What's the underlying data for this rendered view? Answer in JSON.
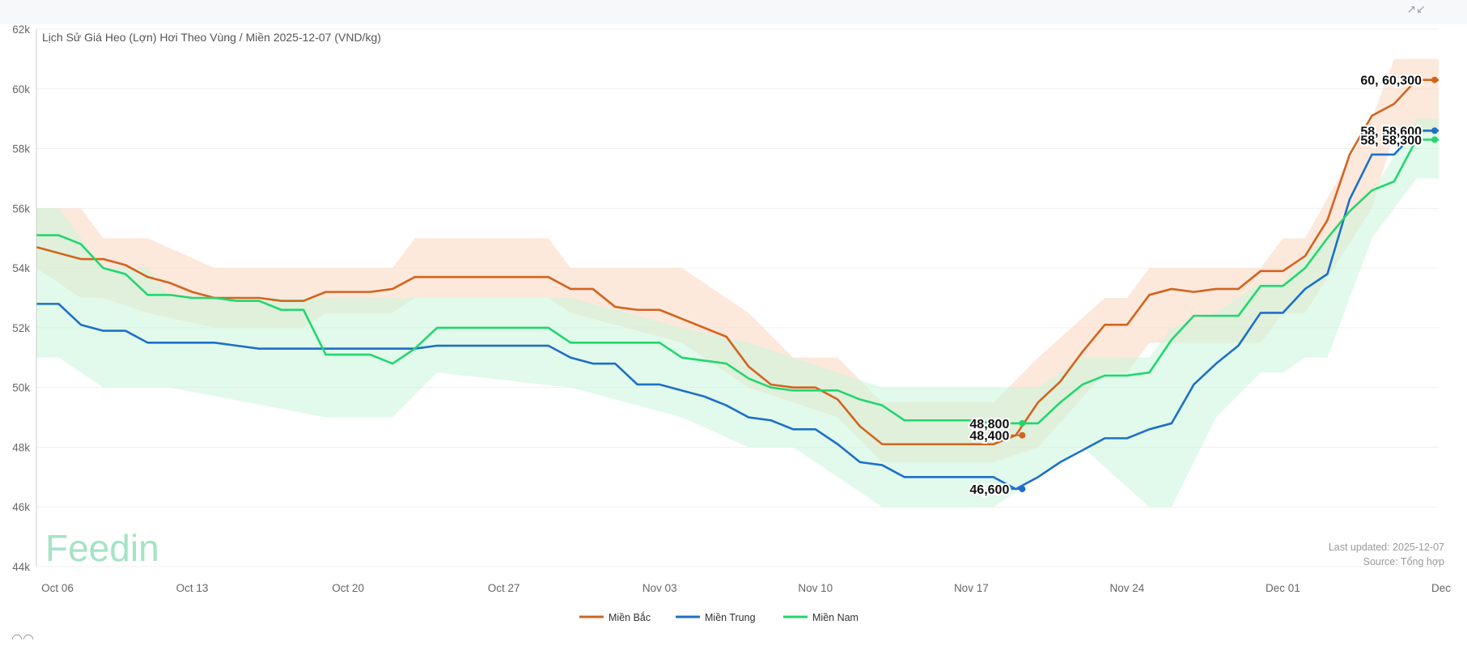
{
  "app": {
    "expand_icon": "collapse-expand-icon",
    "brand": "Feedin",
    "bottom_icon": "chat-bubble-icon"
  },
  "footer": {
    "updated": "Last updated: 2025-12-07",
    "source": "Source: Tổng hợp"
  },
  "chart_data": {
    "type": "line",
    "title": "Lịch Sử Giá Heo (Lợn) Hơi Theo Vùng / Miền 2025-12-07 (VND/kg)",
    "xlabel": "",
    "ylabel": "",
    "x_range": [
      "2025-10-06",
      "2025-12-08"
    ],
    "ylim": [
      44000,
      62000
    ],
    "y_ticks": [
      44000,
      46000,
      48000,
      50000,
      52000,
      54000,
      56000,
      58000,
      60000,
      62000
    ],
    "y_tick_labels": [
      "44k",
      "46k",
      "48k",
      "50k",
      "52k",
      "54k",
      "56k",
      "58k",
      "60k",
      "62k"
    ],
    "x_ticks": [
      0,
      7,
      14,
      21,
      28,
      35,
      42,
      49,
      56,
      63
    ],
    "x_tick_labels": [
      "Oct 06",
      "Oct 13",
      "Oct 20",
      "Oct 27",
      "Nov 03",
      "Nov 10",
      "Nov 17",
      "Nov 24",
      "Dec 01",
      "Dec"
    ],
    "grid": true,
    "legend_position": "bottom-center",
    "series": [
      {
        "name": "Miền Bắc",
        "color": "#d2641e",
        "band_color": "#fbd5bf",
        "points": [
          [
            0,
            54700
          ],
          [
            1,
            54500
          ],
          [
            1.5,
            54400
          ],
          [
            2,
            54300
          ],
          [
            3,
            54300
          ],
          [
            4,
            54100
          ],
          [
            5,
            53700
          ],
          [
            6,
            53500
          ],
          [
            7,
            53200
          ],
          [
            8,
            53000
          ],
          [
            9,
            53000
          ],
          [
            10,
            53000
          ],
          [
            11,
            52900
          ],
          [
            12,
            52900
          ],
          [
            13,
            53200
          ],
          [
            14,
            53200
          ],
          [
            15,
            53200
          ],
          [
            16,
            53300
          ],
          [
            17,
            53700
          ],
          [
            18,
            53700
          ],
          [
            19,
            53700
          ],
          [
            20,
            53700
          ],
          [
            21,
            53700
          ],
          [
            22,
            53700
          ],
          [
            23,
            53700
          ],
          [
            24,
            53300
          ],
          [
            25,
            53300
          ],
          [
            26,
            52700
          ],
          [
            27,
            52600
          ],
          [
            28,
            52600
          ],
          [
            29,
            52300
          ],
          [
            30,
            52000
          ],
          [
            31,
            51700
          ],
          [
            32,
            50700
          ],
          [
            33,
            50100
          ],
          [
            34,
            50000
          ],
          [
            35,
            50000
          ],
          [
            36,
            49600
          ],
          [
            37,
            48700
          ],
          [
            38,
            48100
          ],
          [
            39,
            48100
          ],
          [
            40,
            48100
          ],
          [
            41,
            48100
          ],
          [
            42,
            48100
          ],
          [
            43,
            48100
          ],
          [
            44,
            48400
          ],
          [
            45,
            49500
          ],
          [
            46,
            50200
          ],
          [
            47,
            51200
          ],
          [
            48,
            52100
          ],
          [
            49,
            52100
          ],
          [
            50,
            53100
          ],
          [
            51,
            53300
          ],
          [
            52,
            53200
          ],
          [
            53,
            53300
          ],
          [
            54,
            53300
          ],
          [
            55,
            53900
          ],
          [
            56,
            53900
          ],
          [
            57,
            54400
          ],
          [
            58,
            55600
          ],
          [
            59,
            57800
          ],
          [
            60,
            59100
          ],
          [
            61,
            59500
          ],
          [
            62,
            60300
          ],
          [
            63,
            60300
          ]
        ],
        "band": [
          [
            0,
            56000,
            54000
          ],
          [
            2,
            56000,
            53000
          ],
          [
            3,
            55000,
            53000
          ],
          [
            5,
            55000,
            52500
          ],
          [
            8,
            54000,
            52000
          ],
          [
            12,
            54000,
            52000
          ],
          [
            13,
            54000,
            52500
          ],
          [
            16,
            54000,
            52500
          ],
          [
            17,
            55000,
            53000
          ],
          [
            23,
            55000,
            53000
          ],
          [
            24,
            54000,
            52500
          ],
          [
            29,
            54000,
            51500
          ],
          [
            32,
            52500,
            50000
          ],
          [
            34,
            51000,
            49500
          ],
          [
            36,
            51000,
            49000
          ],
          [
            38,
            49500,
            47500
          ],
          [
            43,
            49500,
            47500
          ],
          [
            45,
            51000,
            48000
          ],
          [
            48,
            53000,
            50500
          ],
          [
            49,
            53000,
            50500
          ],
          [
            50,
            54000,
            51500
          ],
          [
            55,
            54000,
            51500
          ],
          [
            56,
            55000,
            52500
          ],
          [
            57,
            55000,
            52500
          ],
          [
            60,
            59000,
            56000
          ],
          [
            61,
            61000,
            58500
          ],
          [
            63,
            61000,
            58500
          ]
        ]
      },
      {
        "name": "Miền Trung",
        "color": "#1e6fc8",
        "band_color": "#c6dcf2",
        "points": [
          [
            0,
            52800
          ],
          [
            1,
            52800
          ],
          [
            2,
            52100
          ],
          [
            3,
            51900
          ],
          [
            4,
            51900
          ],
          [
            5,
            51500
          ],
          [
            6,
            51500
          ],
          [
            7,
            51500
          ],
          [
            8,
            51500
          ],
          [
            9,
            51400
          ],
          [
            10,
            51300
          ],
          [
            11,
            51300
          ],
          [
            12,
            51300
          ],
          [
            13,
            51300
          ],
          [
            14,
            51300
          ],
          [
            15,
            51300
          ],
          [
            16,
            51300
          ],
          [
            17,
            51300
          ],
          [
            18,
            51400
          ],
          [
            19,
            51400
          ],
          [
            20,
            51400
          ],
          [
            21,
            51400
          ],
          [
            22,
            51400
          ],
          [
            23,
            51400
          ],
          [
            24,
            51000
          ],
          [
            25,
            50800
          ],
          [
            26,
            50800
          ],
          [
            27,
            50100
          ],
          [
            28,
            50100
          ],
          [
            29,
            49900
          ],
          [
            30,
            49700
          ],
          [
            31,
            49400
          ],
          [
            32,
            49000
          ],
          [
            33,
            48900
          ],
          [
            34,
            48600
          ],
          [
            35,
            48600
          ],
          [
            36,
            48100
          ],
          [
            37,
            47500
          ],
          [
            38,
            47400
          ],
          [
            39,
            47000
          ],
          [
            40,
            47000
          ],
          [
            41,
            47000
          ],
          [
            42,
            47000
          ],
          [
            43,
            47000
          ],
          [
            44,
            46600
          ],
          [
            45,
            47000
          ],
          [
            46,
            47500
          ],
          [
            47,
            47900
          ],
          [
            48,
            48300
          ],
          [
            49,
            48300
          ],
          [
            50,
            48600
          ],
          [
            51,
            48800
          ],
          [
            52,
            50100
          ],
          [
            53,
            50800
          ],
          [
            54,
            51400
          ],
          [
            55,
            52500
          ],
          [
            56,
            52500
          ],
          [
            57,
            53300
          ],
          [
            58,
            53800
          ],
          [
            59,
            56300
          ],
          [
            60,
            57800
          ],
          [
            61,
            57800
          ],
          [
            62,
            58600
          ],
          [
            63,
            58600
          ]
        ],
        "band": []
      },
      {
        "name": "Miền Nam",
        "color": "#22d66e",
        "band_color": "#c8f5da",
        "points": [
          [
            0,
            55100
          ],
          [
            1,
            55100
          ],
          [
            2,
            54800
          ],
          [
            3,
            54000
          ],
          [
            4,
            53800
          ],
          [
            5,
            53100
          ],
          [
            6,
            53100
          ],
          [
            7,
            53000
          ],
          [
            8,
            53000
          ],
          [
            9,
            52900
          ],
          [
            10,
            52900
          ],
          [
            11,
            52600
          ],
          [
            12,
            52600
          ],
          [
            13,
            51100
          ],
          [
            14,
            51100
          ],
          [
            15,
            51100
          ],
          [
            16,
            50800
          ],
          [
            17,
            51300
          ],
          [
            18,
            52000
          ],
          [
            19,
            52000
          ],
          [
            20,
            52000
          ],
          [
            21,
            52000
          ],
          [
            22,
            52000
          ],
          [
            23,
            52000
          ],
          [
            24,
            51500
          ],
          [
            25,
            51500
          ],
          [
            26,
            51500
          ],
          [
            27,
            51500
          ],
          [
            28,
            51500
          ],
          [
            29,
            51000
          ],
          [
            30,
            50900
          ],
          [
            31,
            50800
          ],
          [
            32,
            50300
          ],
          [
            33,
            50000
          ],
          [
            34,
            49900
          ],
          [
            35,
            49900
          ],
          [
            36,
            49900
          ],
          [
            37,
            49600
          ],
          [
            38,
            49400
          ],
          [
            39,
            48900
          ],
          [
            40,
            48900
          ],
          [
            41,
            48900
          ],
          [
            42,
            48900
          ],
          [
            43,
            48800
          ],
          [
            44,
            48800
          ],
          [
            45,
            48800
          ],
          [
            46,
            49500
          ],
          [
            47,
            50100
          ],
          [
            48,
            50400
          ],
          [
            49,
            50400
          ],
          [
            50,
            50500
          ],
          [
            51,
            51600
          ],
          [
            52,
            52400
          ],
          [
            53,
            52400
          ],
          [
            54,
            52400
          ],
          [
            55,
            53400
          ],
          [
            56,
            53400
          ],
          [
            57,
            54000
          ],
          [
            58,
            55000
          ],
          [
            59,
            55900
          ],
          [
            60,
            56600
          ],
          [
            61,
            56900
          ],
          [
            62,
            58300
          ],
          [
            63,
            58300
          ]
        ],
        "band": [
          [
            0,
            56000,
            51000
          ],
          [
            1,
            56000,
            51000
          ],
          [
            3,
            54000,
            50000
          ],
          [
            5,
            54000,
            50000
          ],
          [
            6,
            53000,
            50000
          ],
          [
            13,
            53000,
            49000
          ],
          [
            16,
            53000,
            49000
          ],
          [
            18,
            53000,
            50500
          ],
          [
            24,
            53000,
            50000
          ],
          [
            29,
            52000,
            49000
          ],
          [
            32,
            51500,
            48000
          ],
          [
            34,
            51000,
            48000
          ],
          [
            36,
            50500,
            47000
          ],
          [
            38,
            50000,
            46000
          ],
          [
            43,
            50000,
            46000
          ],
          [
            45,
            50000,
            47000
          ],
          [
            47,
            51000,
            48000
          ],
          [
            50,
            51000,
            46000
          ],
          [
            51,
            52000,
            46000
          ],
          [
            53,
            52500,
            49000
          ],
          [
            55,
            53500,
            50500
          ],
          [
            56,
            53500,
            50500
          ],
          [
            57,
            54500,
            51000
          ],
          [
            58,
            55000,
            51000
          ],
          [
            60,
            56500,
            55000
          ],
          [
            62,
            59000,
            57000
          ],
          [
            63,
            59000,
            57000
          ]
        ]
      }
    ],
    "end_labels": [
      {
        "series": "Miền Bắc",
        "x": 62,
        "value": 60300,
        "text": "60, 60,300"
      },
      {
        "series": "Miền Trung",
        "x": 62,
        "value": 58600,
        "text": "58, 58,600"
      },
      {
        "series": "Miền Nam",
        "x": 62,
        "value": 58300,
        "text": "58, 58,300"
      },
      {
        "series": "Miền Nam",
        "x": 44,
        "value": 48800,
        "text": "48,800"
      },
      {
        "series": "Miền Bắc",
        "x": 44,
        "value": 48400,
        "text": "48,400"
      },
      {
        "series": "Miền Trung",
        "x": 44,
        "value": 46600,
        "text": "46,600"
      }
    ]
  }
}
